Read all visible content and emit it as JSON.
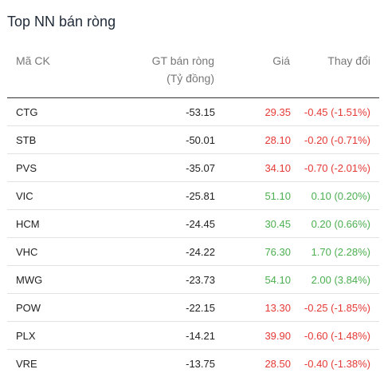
{
  "title": "Top NN bán ròng",
  "columns": {
    "symbol": "Mã CK",
    "net_value_line1": "GT bán ròng",
    "net_value_line2": "(Tỷ đồng)",
    "price": "Giá",
    "change": "Thay đổi"
  },
  "colors": {
    "down": "#e53935",
    "up": "#4caf50"
  },
  "rows": [
    {
      "symbol": "CTG",
      "net_value": "-53.15",
      "price": "29.35",
      "change": "-0.45 (-1.51%)",
      "trend": "down"
    },
    {
      "symbol": "STB",
      "net_value": "-50.01",
      "price": "28.10",
      "change": "-0.20 (-0.71%)",
      "trend": "down"
    },
    {
      "symbol": "PVS",
      "net_value": "-35.07",
      "price": "34.10",
      "change": "-0.70 (-2.01%)",
      "trend": "down"
    },
    {
      "symbol": "VIC",
      "net_value": "-25.81",
      "price": "51.10",
      "change": "0.10 (0.20%)",
      "trend": "up"
    },
    {
      "symbol": "HCM",
      "net_value": "-24.45",
      "price": "30.45",
      "change": "0.20 (0.66%)",
      "trend": "up"
    },
    {
      "symbol": "VHC",
      "net_value": "-24.22",
      "price": "76.30",
      "change": "1.70 (2.28%)",
      "trend": "up"
    },
    {
      "symbol": "MWG",
      "net_value": "-23.73",
      "price": "54.10",
      "change": "2.00 (3.84%)",
      "trend": "up"
    },
    {
      "symbol": "POW",
      "net_value": "-22.15",
      "price": "13.30",
      "change": "-0.25 (-1.85%)",
      "trend": "down"
    },
    {
      "symbol": "PLX",
      "net_value": "-14.21",
      "price": "39.90",
      "change": "-0.60 (-1.48%)",
      "trend": "down"
    },
    {
      "symbol": "VRE",
      "net_value": "-13.75",
      "price": "28.50",
      "change": "-0.40 (-1.38%)",
      "trend": "down"
    }
  ]
}
